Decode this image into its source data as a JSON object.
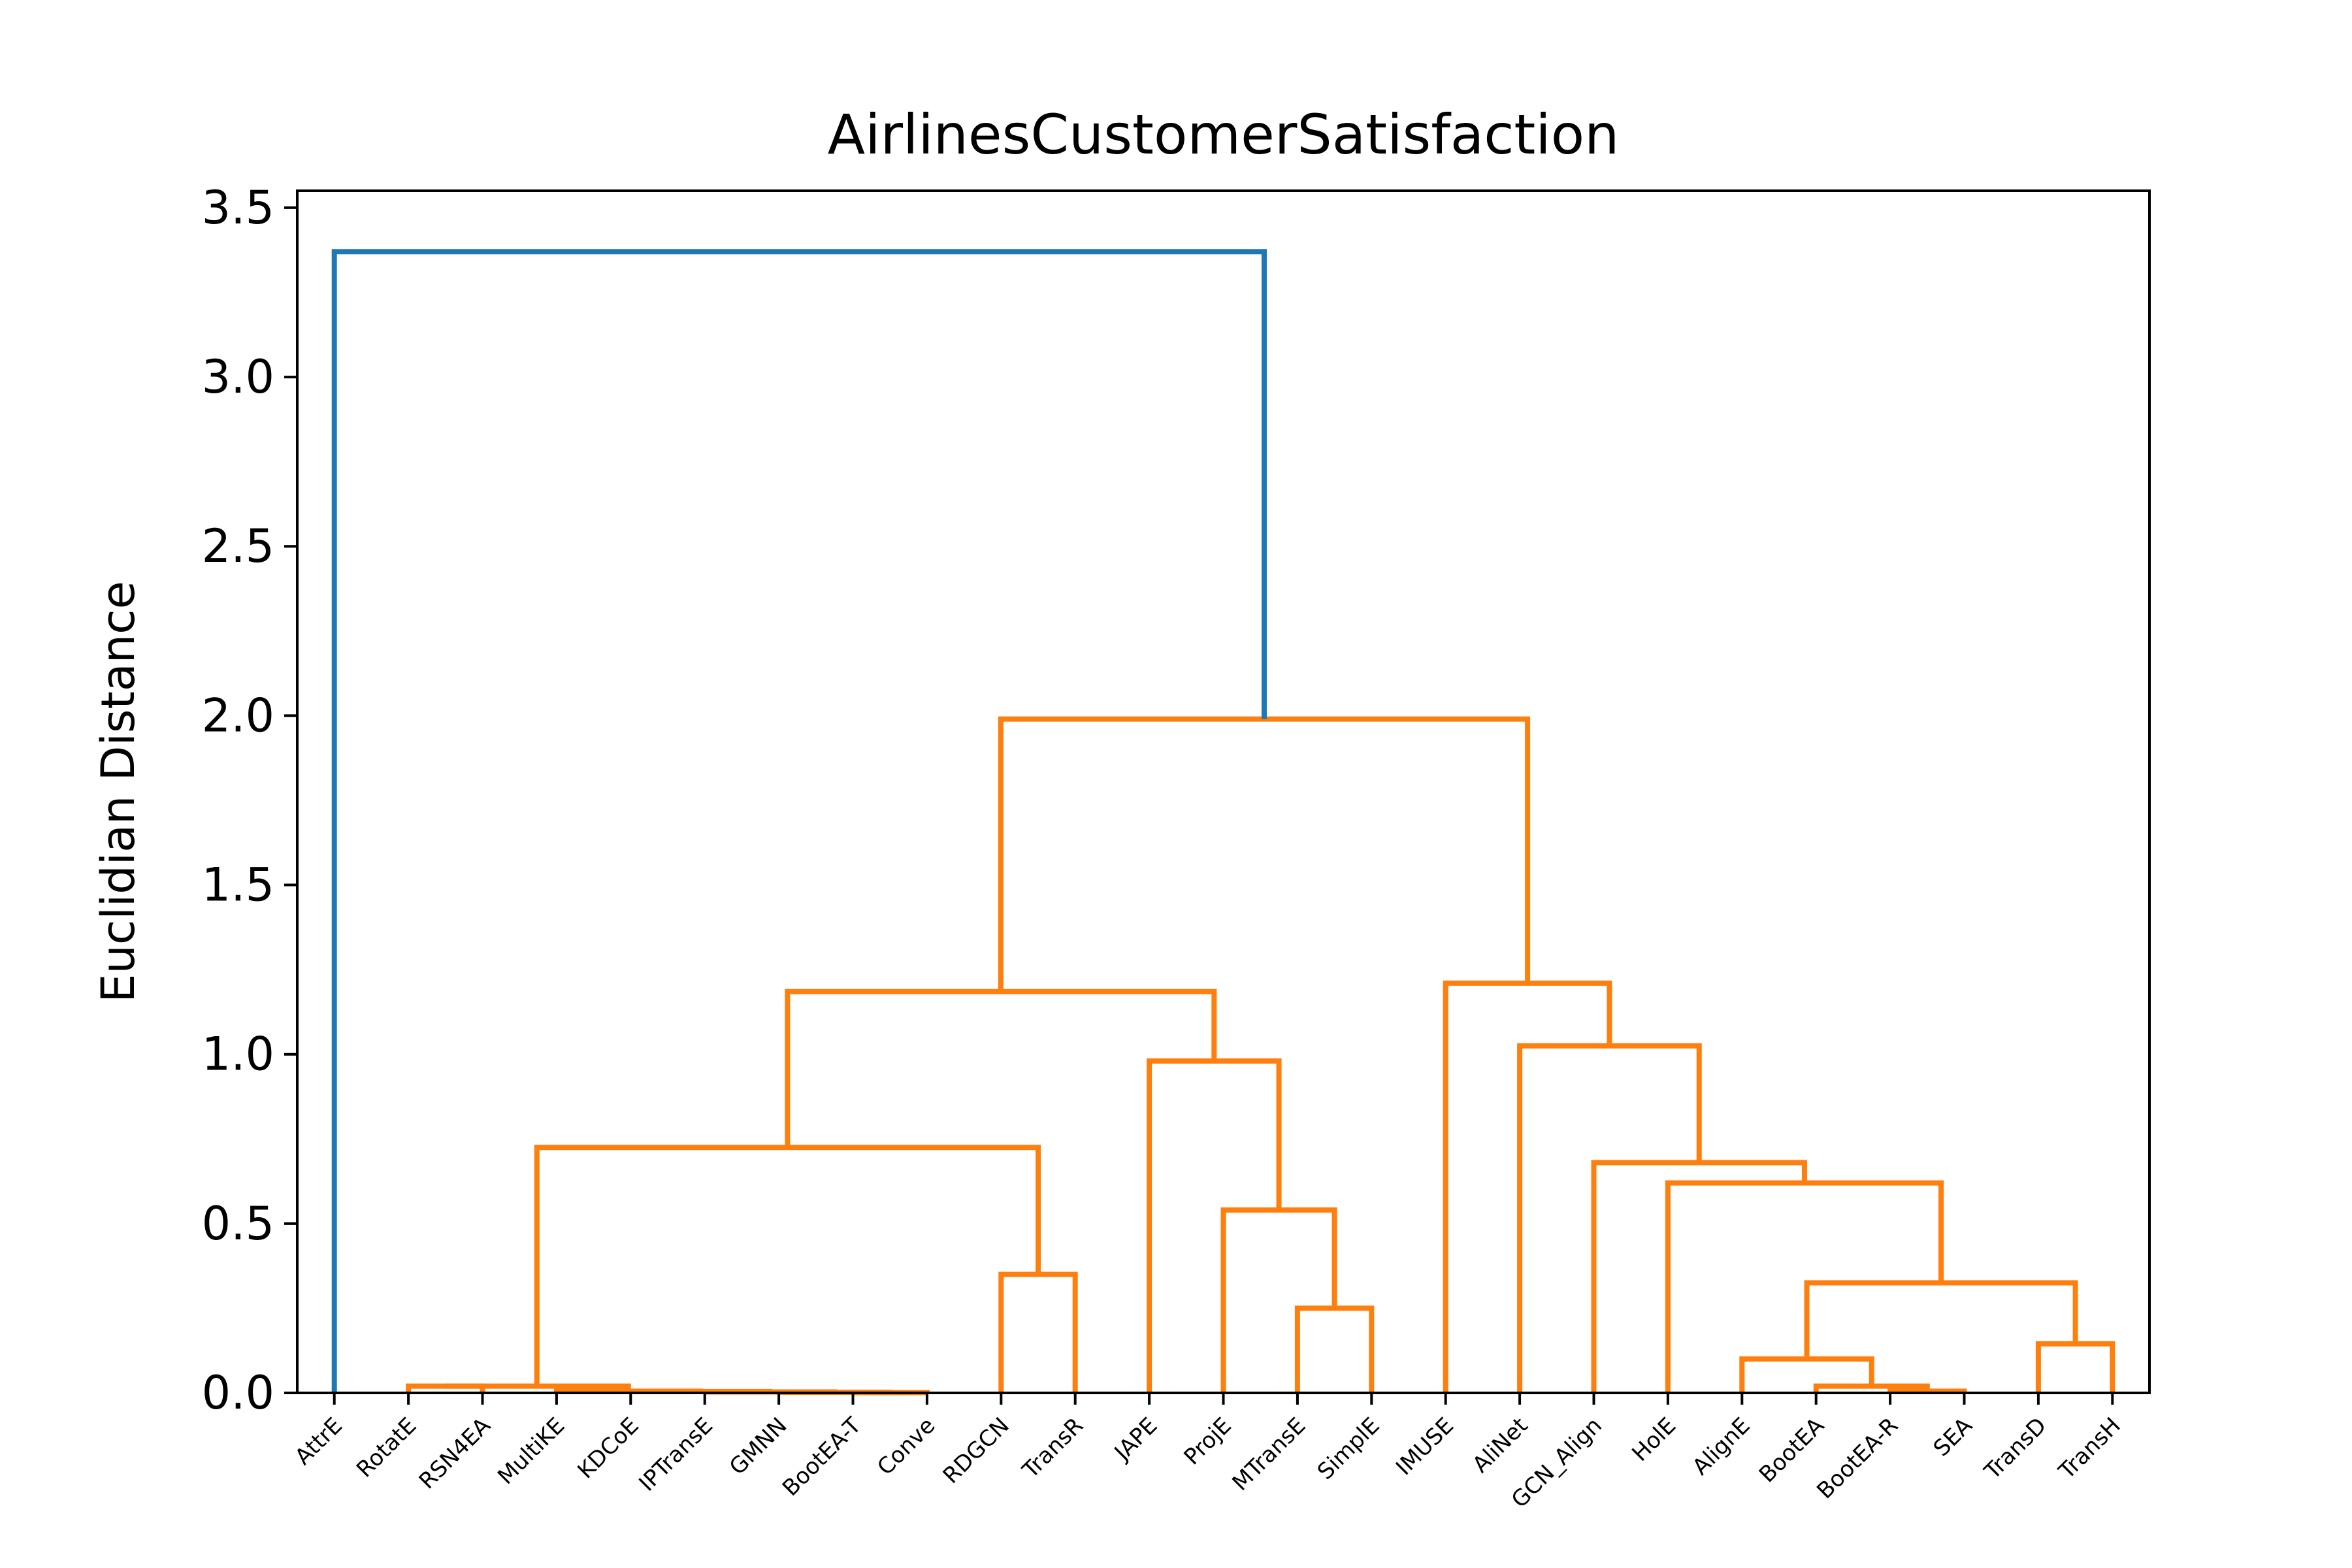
{
  "chart_data": {
    "type": "dendrogram",
    "title": "AirlinesCustomerSatisfaction",
    "xlabel": "",
    "ylabel": "Euclidian Distance",
    "ylim": [
      0,
      3.55
    ],
    "yticks": [
      "0.0",
      "0.5",
      "1.0",
      "1.5",
      "2.0",
      "2.5",
      "3.0",
      "3.5"
    ],
    "grid": false,
    "leaves": [
      "AttrE",
      "RotatE",
      "RSN4EA",
      "MultiKE",
      "KDCoE",
      "IPTransE",
      "GMNN",
      "BootEA-T",
      "Conve",
      "RDGCN",
      "TransR",
      "JAPE",
      "ProjE",
      "MTransE",
      "SimplE",
      "IMUSE",
      "AliNet",
      "GCN_Align",
      "HolE",
      "AlignE",
      "BootEA",
      "BootEA-R",
      "SEA",
      "TransD",
      "TransH"
    ],
    "colors": {
      "above_threshold": "#1f77b4",
      "cluster": "#ff7f0e"
    },
    "links": [
      {
        "a": [
          7,
          8
        ],
        "h": 0.001,
        "color": "#ff7f0e"
      },
      {
        "a": [
          6,
          7.5
        ],
        "h": 0.002,
        "color": "#ff7f0e"
      },
      {
        "a": [
          5,
          6.75
        ],
        "h": 0.003,
        "color": "#ff7f0e"
      },
      {
        "a": [
          4,
          5.875
        ],
        "h": 0.004,
        "color": "#ff7f0e"
      },
      {
        "a": [
          3,
          4.9375
        ],
        "h": 0.005,
        "color": "#ff7f0e"
      },
      {
        "a": [
          1,
          2
        ],
        "h": 0.02,
        "color": "#ff7f0e"
      },
      {
        "a": [
          1.5,
          3.96875
        ],
        "h": 0.02,
        "color": "#ff7f0e"
      },
      {
        "a": [
          21,
          22
        ],
        "h": 0.005,
        "color": "#ff7f0e"
      },
      {
        "a": [
          20,
          21.5
        ],
        "h": 0.02,
        "color": "#ff7f0e"
      },
      {
        "a": [
          19,
          20.75
        ],
        "h": 0.1,
        "color": "#ff7f0e"
      },
      {
        "a": [
          23,
          24
        ],
        "h": 0.145,
        "color": "#ff7f0e"
      },
      {
        "a": [
          13,
          14
        ],
        "h": 0.25,
        "color": "#ff7f0e"
      },
      {
        "a": [
          19.875,
          23.5
        ],
        "h": 0.325,
        "color": "#ff7f0e"
      },
      {
        "a": [
          9,
          10
        ],
        "h": 0.35,
        "color": "#ff7f0e"
      },
      {
        "a": [
          12,
          13.5
        ],
        "h": 0.54,
        "color": "#ff7f0e"
      },
      {
        "a": [
          18,
          21.6875
        ],
        "h": 0.62,
        "color": "#ff7f0e"
      },
      {
        "a": [
          17,
          19.84375
        ],
        "h": 0.68,
        "color": "#ff7f0e"
      },
      {
        "a": [
          2.734375,
          9.5
        ],
        "h": 0.725,
        "color": "#ff7f0e"
      },
      {
        "a": [
          11,
          12.75
        ],
        "h": 0.98,
        "color": "#ff7f0e"
      },
      {
        "a": [
          16,
          18.421875
        ],
        "h": 1.025,
        "color": "#ff7f0e"
      },
      {
        "a": [
          6.1171875,
          11.875
        ],
        "h": 1.185,
        "color": "#ff7f0e"
      },
      {
        "a": [
          15,
          17.2109375
        ],
        "h": 1.21,
        "color": "#ff7f0e"
      },
      {
        "a": [
          8.99609375,
          16.10546875
        ],
        "h": 1.99,
        "color": "#ff7f0e"
      },
      {
        "a": [
          0,
          12.55078125
        ],
        "h": 3.37,
        "color": "#1f77b4"
      }
    ]
  }
}
